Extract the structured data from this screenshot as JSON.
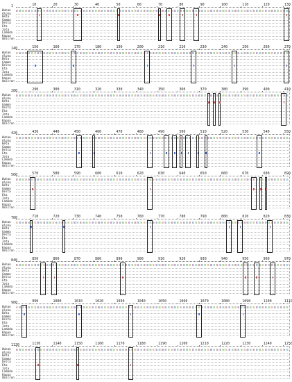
{
  "variants": [
    "Wuhan",
    "Alpha",
    "Beta",
    "Gamma",
    "Delta",
    "Eta",
    "Iota",
    "Lambda",
    "Kappa",
    "Omicron"
  ],
  "blocks": [
    {
      "start_label": "1",
      "ticks": [
        "10",
        "20",
        "30",
        "40",
        "50",
        "60",
        "70",
        "80",
        "90",
        "100",
        "110",
        "120",
        "130"
      ],
      "boxes": [
        [
          0.075,
          0.095
        ],
        [
          0.21,
          0.24
        ],
        [
          0.37,
          0.38
        ],
        [
          0.52,
          0.53
        ],
        [
          0.55,
          0.57
        ],
        [
          0.6,
          0.62
        ],
        [
          0.65,
          0.67
        ],
        [
          0.98,
          1.0
        ]
      ]
    },
    {
      "start_label": "140",
      "ticks": [
        "150",
        "160",
        "170",
        "180",
        "190",
        "200",
        "210",
        "220",
        "230",
        "240",
        "250",
        "260",
        "270"
      ],
      "boxes": [
        [
          0.04,
          0.1
        ],
        [
          0.2,
          0.22
        ],
        [
          0.47,
          0.49
        ],
        [
          0.64,
          0.66
        ],
        [
          0.79,
          0.81
        ],
        [
          0.98,
          1.0
        ]
      ]
    },
    {
      "start_label": "280",
      "ticks": [
        "290",
        "300",
        "310",
        "320",
        "330",
        "340",
        "350",
        "360",
        "370",
        "380",
        "390",
        "400",
        "410"
      ],
      "boxes": [
        [
          0.7,
          0.71
        ],
        [
          0.72,
          0.73
        ],
        [
          0.74,
          0.75
        ],
        [
          0.97,
          0.99
        ]
      ]
    },
    {
      "start_label": "420",
      "ticks": [
        "430",
        "440",
        "450",
        "460",
        "470",
        "480",
        "490",
        "500",
        "510",
        "520",
        "530",
        "540",
        "550"
      ],
      "boxes": [
        [
          0.22,
          0.24
        ],
        [
          0.28,
          0.29
        ],
        [
          0.48,
          0.5
        ],
        [
          0.54,
          0.56
        ],
        [
          0.57,
          0.59
        ],
        [
          0.6,
          0.61
        ],
        [
          0.62,
          0.64
        ],
        [
          0.66,
          0.67
        ],
        [
          0.69,
          0.7
        ],
        [
          0.88,
          0.9
        ]
      ]
    },
    {
      "start_label": "560",
      "ticks": [
        "570",
        "580",
        "590",
        "600",
        "610",
        "620",
        "630",
        "640",
        "650",
        "660",
        "670",
        "680",
        "690"
      ],
      "boxes": [
        [
          0.05,
          0.07
        ],
        [
          0.48,
          0.5
        ],
        [
          0.86,
          0.88
        ],
        [
          0.89,
          0.9
        ],
        [
          0.91,
          0.92
        ]
      ]
    },
    {
      "start_label": "700",
      "ticks": [
        "710",
        "720",
        "730",
        "740",
        "750",
        "760",
        "770",
        "780",
        "790",
        "800",
        "810",
        "820",
        "830"
      ],
      "boxes": [
        [
          0.05,
          0.06
        ],
        [
          0.17,
          0.18
        ],
        [
          0.48,
          0.5
        ],
        [
          0.77,
          0.79
        ],
        [
          0.81,
          0.83
        ],
        [
          0.92,
          0.94
        ]
      ]
    },
    {
      "start_label": "840",
      "ticks": [
        "850",
        "860",
        "870",
        "880",
        "890",
        "900",
        "910",
        "920",
        "930",
        "940",
        "950",
        "960",
        "970"
      ],
      "boxes": [
        [
          0.09,
          0.11
        ],
        [
          0.13,
          0.15
        ],
        [
          0.38,
          0.4
        ],
        [
          0.83,
          0.85
        ],
        [
          0.87,
          0.89
        ],
        [
          0.93,
          0.95
        ]
      ]
    },
    {
      "start_label": "980",
      "ticks": [
        "990",
        "1000",
        "1010",
        "1020",
        "1030",
        "1040",
        "1050",
        "1060",
        "1070",
        "1080",
        "1090",
        "1100",
        "1110"
      ],
      "boxes": [
        [
          0.02,
          0.04
        ],
        [
          0.22,
          0.24
        ],
        [
          0.41,
          0.43
        ],
        [
          0.66,
          0.68
        ],
        [
          0.82,
          0.84
        ]
      ]
    },
    {
      "start_label": "1120",
      "ticks": [
        "1130",
        "1140",
        "1150",
        "1160",
        "1170",
        "1180",
        "1190",
        "1200",
        "1210",
        "1220",
        "1230",
        "1240",
        "1250"
      ],
      "boxes": [
        [
          0.07,
          0.09
        ],
        [
          0.22,
          0.23
        ],
        [
          0.41,
          0.43
        ]
      ]
    }
  ]
}
